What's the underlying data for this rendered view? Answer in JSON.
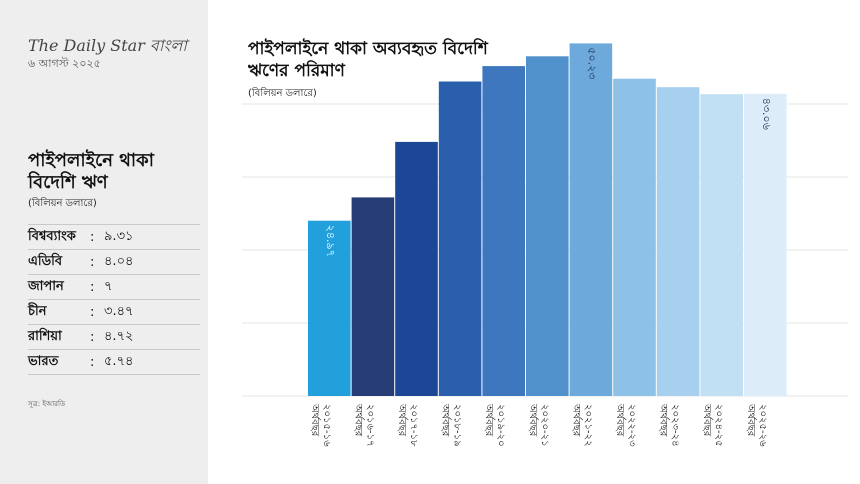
{
  "masthead": {
    "brand": "The Daily Star বাংলা",
    "date": "৬ আগস্ট ২০২৫"
  },
  "sidebar": {
    "title": "পাইপলাইনে থাকা বিদেশি ঋণ",
    "subtitle": "(বিলিয়ন ডলারে)",
    "loans": [
      {
        "name": "বিশ্বব্যাংক",
        "value": "৯.৩১"
      },
      {
        "name": "এডিবি",
        "value": "৪.০৪"
      },
      {
        "name": "জাপান",
        "value": "৭"
      },
      {
        "name": "চীন",
        "value": "৩.৪৭"
      },
      {
        "name": "রাশিয়া",
        "value": "৪.৭২"
      },
      {
        "name": "ভারত",
        "value": "৫.৭৪"
      }
    ],
    "source": "সূত্র: ইআরডি"
  },
  "chart_data": {
    "type": "bar",
    "title": "পাইপলাইনে থাকা অব্যবহৃত বিদেশি ঋণের পরিমাণ",
    "subtitle": "(বিলিয়ন ডলারে)",
    "categories": [
      "২০১৫-১৬ অর্থবছর",
      "২০১৬-১৭ অর্থবছর",
      "২০১৭-১৮ অর্থবছর",
      "২০১৮-১৯ অর্থবছর",
      "২০১৯-২০ অর্থবছর",
      "২০২০-২১ অর্থবছর",
      "২০২১-২২ অর্থবছর",
      "২০২২-২৩ অর্থবছর",
      "২০২৩-২৪ অর্থবছর",
      "২০২৪-২৫ অর্থবছর",
      "২০২৫-২৬ অর্থবছর"
    ],
    "values": [
      24.97,
      28.3,
      36.2,
      44.8,
      47.0,
      48.4,
      50.23,
      45.2,
      44.0,
      43.0,
      43.06
    ],
    "data_labels": [
      "২৪.৯৭",
      "",
      "",
      "",
      "",
      "",
      "৫০.২৩",
      "",
      "",
      "",
      "৪৩.০৬"
    ],
    "colors": [
      "#22a0dc",
      "#263c74",
      "#1c4796",
      "#2a5fae",
      "#3f77bf",
      "#5090cb",
      "#6da9db",
      "#8dc1e6",
      "#a6d0ee",
      "#c1e0f4",
      "#dcedf9"
    ],
    "label_colors": [
      "#ffffff",
      "",
      "",
      "",
      "",
      "",
      "#1a2e50",
      "",
      "",
      "",
      "#1a2e50"
    ],
    "ylim": [
      0,
      52
    ],
    "grid": true
  }
}
